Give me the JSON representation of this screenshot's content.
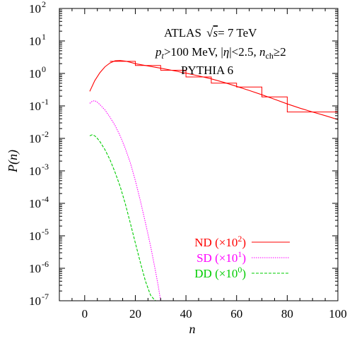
{
  "chart_data": {
    "type": "line",
    "title": "",
    "xlabel": "n",
    "ylabel": "P(n)",
    "xlim": [
      -10,
      100
    ],
    "ylim": [
      1e-07,
      100
    ],
    "yscale": "log",
    "grid": false,
    "legend_position": "bottom-right",
    "x_ticks": [
      "0",
      "20",
      "40",
      "60",
      "80",
      "100"
    ],
    "y_tick_bases": [
      "10",
      "10",
      "10",
      "10",
      "10",
      "10",
      "10",
      "10",
      "10",
      "10"
    ],
    "y_tick_exponents": [
      "-7",
      "-6",
      "-5",
      "-4",
      "-3",
      "-2",
      "-1",
      "0",
      "1",
      "2"
    ],
    "annotations": {
      "line1_prefix": "ATLAS",
      "line1_s": "s",
      "line1_suffix": "= 7 TeV",
      "line2_p": "p",
      "line2_t": "t",
      "line2_mid": ">100 MeV, |",
      "line2_eta": "η",
      "line2_cut": "|<2.5, ",
      "line2_n": "n",
      "line2_ch": "ch",
      "line2_ge": "≥2",
      "line3": "PYTHIA 6"
    },
    "series": [
      {
        "name": "ND",
        "label_suffix": " (×10",
        "exponent": "2",
        "color": "#ff0000",
        "style": "solid",
        "x": [
          2,
          4,
          6,
          8,
          10,
          12,
          14,
          16,
          18,
          20,
          25,
          30,
          35,
          40,
          45,
          50,
          55,
          60,
          65,
          70,
          75,
          80,
          85,
          90,
          95,
          100
        ],
        "y": [
          0.28,
          0.6,
          1.05,
          1.6,
          2.1,
          2.45,
          2.5,
          2.4,
          2.2,
          2.0,
          1.7,
          1.45,
          1.22,
          1.02,
          0.84,
          0.68,
          0.53,
          0.4,
          0.3,
          0.22,
          0.16,
          0.115,
          0.085,
          0.065,
          0.05,
          0.038
        ]
      },
      {
        "name": "SD",
        "label_suffix": " (×10",
        "exponent": "1",
        "color": "#ff00ff",
        "style": "dotted",
        "x": [
          2,
          3,
          4,
          5,
          6,
          8,
          10,
          12,
          14,
          16,
          18,
          20,
          22,
          24,
          26,
          28,
          29,
          30
        ],
        "y": [
          0.12,
          0.14,
          0.145,
          0.13,
          0.11,
          0.075,
          0.045,
          0.025,
          0.012,
          0.005,
          0.0018,
          0.0005,
          0.00012,
          2.5e-05,
          5e-06,
          8e-07,
          3e-07,
          1e-07
        ]
      },
      {
        "name": "DD",
        "label_suffix": " (×10",
        "exponent": "0",
        "color": "#00cc00",
        "style": "dashed",
        "x": [
          2,
          3,
          4,
          5,
          6,
          8,
          10,
          12,
          14,
          16,
          18,
          20,
          22,
          24,
          26,
          27,
          28
        ],
        "y": [
          0.012,
          0.013,
          0.012,
          0.01,
          0.008,
          0.0045,
          0.0022,
          0.0009,
          0.00033,
          0.0001,
          2.5e-05,
          6e-06,
          1.5e-06,
          4e-07,
          1.5e-07,
          1.2e-07,
          1e-07
        ]
      }
    ],
    "histogram": {
      "color": "#ff0000",
      "bins": [
        {
          "x0": 10,
          "x1": 20,
          "y": 2.35
        },
        {
          "x0": 20,
          "x1": 30,
          "y": 1.75
        },
        {
          "x0": 30,
          "x1": 40,
          "y": 1.25
        },
        {
          "x0": 40,
          "x1": 50,
          "y": 0.78
        },
        {
          "x0": 50,
          "x1": 60,
          "y": 0.5
        },
        {
          "x0": 60,
          "x1": 70,
          "y": 0.38
        },
        {
          "x0": 70,
          "x1": 80,
          "y": 0.19
        },
        {
          "x0": 80,
          "x1": 100,
          "y": 0.065
        }
      ]
    }
  }
}
